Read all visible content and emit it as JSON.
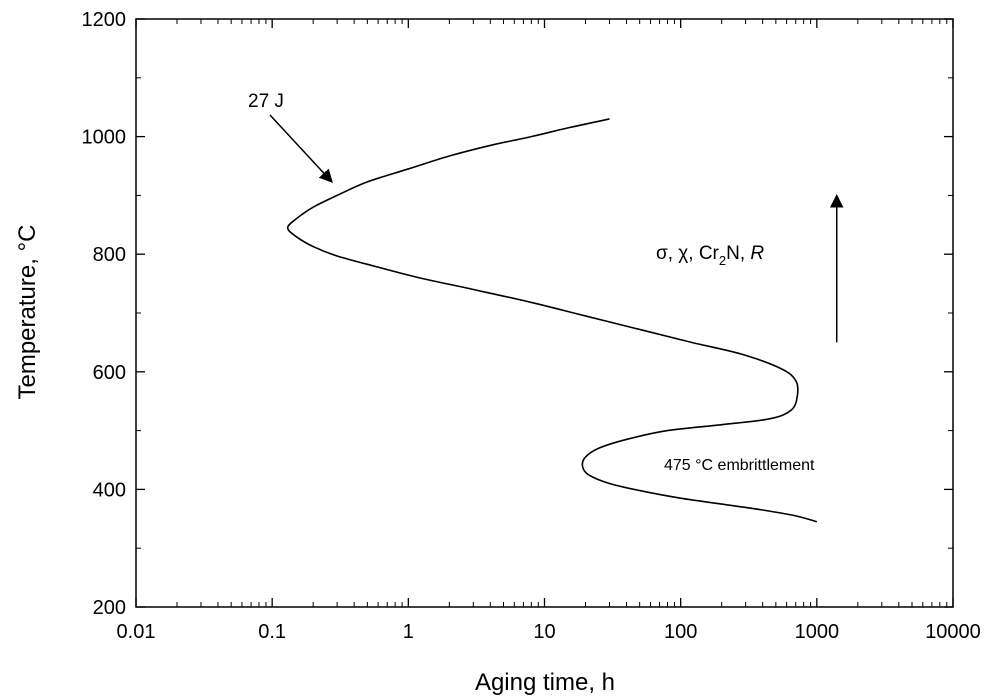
{
  "chart_data": {
    "type": "line",
    "xlabel": "Aging time, h",
    "ylabel": "Temperature, °C",
    "xscale": "log",
    "xlim": [
      0.01,
      10000
    ],
    "ylim": [
      200,
      1200
    ],
    "xticks": [
      {
        "value": 0.01,
        "label": "0.01"
      },
      {
        "value": 0.1,
        "label": "0.1"
      },
      {
        "value": 1,
        "label": "1"
      },
      {
        "value": 10,
        "label": "10"
      },
      {
        "value": 100,
        "label": "100"
      },
      {
        "value": 1000,
        "label": "1000"
      },
      {
        "value": 10000,
        "label": "10000"
      }
    ],
    "yticks": [
      {
        "value": 200,
        "label": "200"
      },
      {
        "value": 400,
        "label": "400"
      },
      {
        "value": 600,
        "label": "600"
      },
      {
        "value": 800,
        "label": "800"
      },
      {
        "value": 1000,
        "label": "1000"
      },
      {
        "value": 1200,
        "label": "1200"
      }
    ],
    "grid": false,
    "series": [
      {
        "x": [
          30,
          15,
          8,
          4,
          2,
          1,
          0.5,
          0.3,
          0.2,
          0.15,
          0.13,
          0.15,
          0.2,
          0.3,
          0.6,
          1.2,
          3,
          8,
          20,
          50,
          120,
          280,
          550,
          700,
          720,
          650,
          450,
          200,
          80,
          40,
          25,
          20,
          19,
          21,
          30,
          50,
          100,
          200,
          400,
          700,
          1000
        ],
        "y": [
          1030,
          1015,
          1000,
          985,
          967,
          945,
          923,
          900,
          880,
          860,
          845,
          830,
          813,
          797,
          778,
          760,
          740,
          718,
          695,
          672,
          650,
          630,
          605,
          585,
          560,
          535,
          520,
          510,
          500,
          485,
          470,
          455,
          440,
          425,
          410,
          398,
          385,
          375,
          365,
          355,
          345
        ]
      }
    ],
    "annotations": [
      {
        "label": "27 J",
        "at": {
          "x": 0.26,
          "y": 915
        }
      },
      {
        "label": "475 °C embrittlement",
        "at": {
          "x": 150,
          "y": 440
        }
      },
      {
        "label_parts": [
          "σ, χ, Cr",
          "2",
          "N, ",
          "R"
        ],
        "arrow_x": 1400,
        "arrow_y": [
          650,
          900
        ]
      }
    ]
  }
}
